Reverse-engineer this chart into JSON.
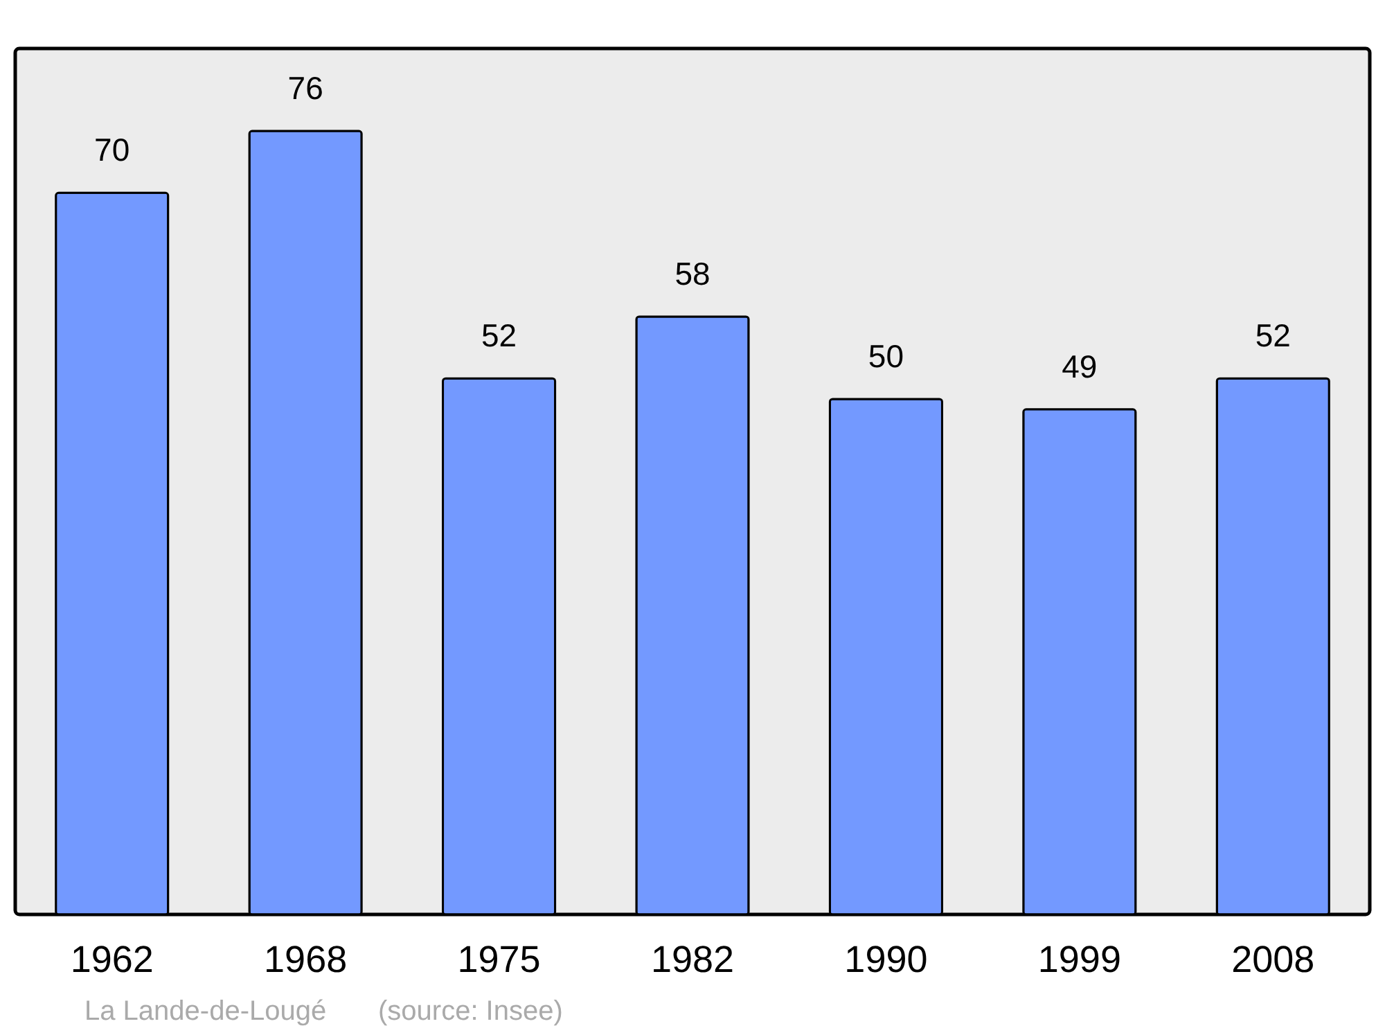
{
  "chart_data": {
    "type": "bar",
    "categories": [
      "1962",
      "1968",
      "1975",
      "1982",
      "1990",
      "1999",
      "2008"
    ],
    "values": [
      70,
      76,
      52,
      58,
      50,
      49,
      52
    ],
    "color": "#7399ff",
    "data_labels": true,
    "ylim": [
      0,
      84
    ],
    "tick_labels": "x",
    "grid": false,
    "annotations": [
      "La Lande-de-Lougé",
      "(source: Insee)"
    ]
  }
}
